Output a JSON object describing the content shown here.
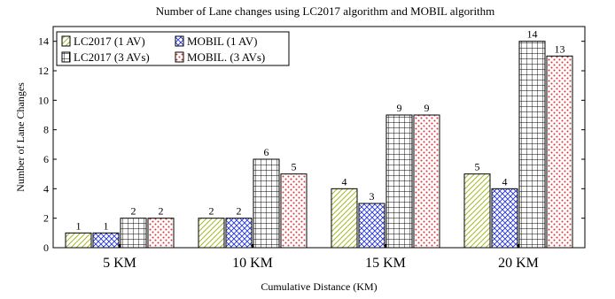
{
  "chart_data": {
    "type": "bar",
    "title": "Number of Lane changes using LC2017 algorithm and MOBIL algorithm",
    "xlabel": "Cumulative Distance (KM)",
    "ylabel": "Number of Lane Changes",
    "categories": [
      "5 KM",
      "10 KM",
      "15 KM",
      "20 KM"
    ],
    "ylim": [
      0,
      15
    ],
    "yticks": [
      0,
      2,
      4,
      6,
      8,
      10,
      12,
      14
    ],
    "grid": false,
    "legend_position": "top-left",
    "series": [
      {
        "name": "LC2017 (1 AV)",
        "values": [
          1,
          2,
          4,
          5
        ],
        "color": "#a8b82a",
        "pattern": "diagonal-lines"
      },
      {
        "name": "MOBIL (1 AV)",
        "values": [
          1,
          2,
          3,
          4
        ],
        "color": "#2233dd",
        "pattern": "crosshatch"
      },
      {
        "name": "LC2017 (3 AVs)",
        "values": [
          2,
          6,
          9,
          14
        ],
        "color": "#000000",
        "pattern": "grid"
      },
      {
        "name": "MOBIL. (3 AVs)",
        "values": [
          2,
          5,
          9,
          13
        ],
        "color": "#e03030",
        "pattern": "dots"
      }
    ]
  }
}
